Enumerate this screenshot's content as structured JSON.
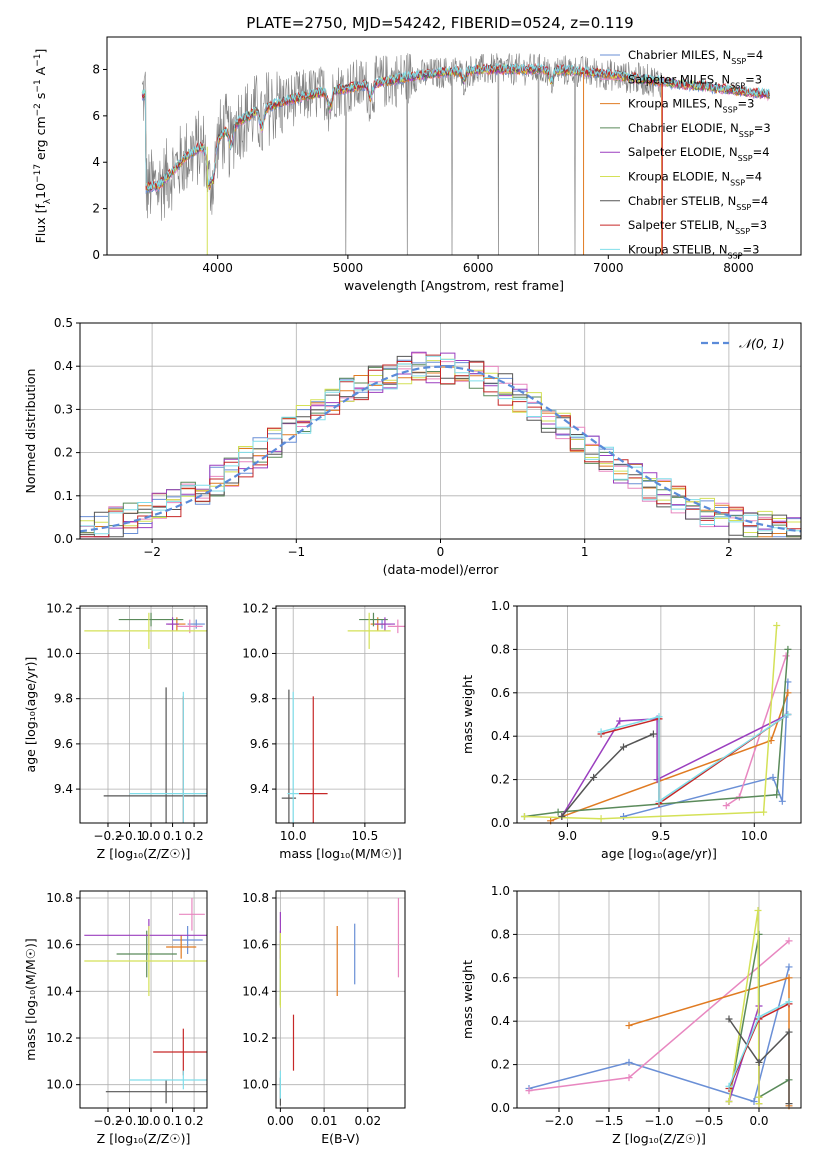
{
  "figure_title": "PLATE=2750, MJD=54242, FIBERID=0524, z=0.119",
  "colors": {
    "Chabrier MILES": "#6a8fd6",
    "Salpeter MILES": "#e887c0",
    "Kroupa MILES": "#e07b22",
    "Chabrier ELODIE": "#5a8a5a",
    "Salpeter ELODIE": "#9b3fbf",
    "Kroupa ELODIE": "#d4e157",
    "Chabrier STELIB": "#555555",
    "Salpeter STELIB": "#c62828",
    "Kroupa STELIB": "#80deea",
    "data": "#808080",
    "normal_curve": "#5b8bd9"
  },
  "chart_data": [
    {
      "id": "spectrum",
      "type": "line",
      "xlabel": "wavelength [Angstrom, rest frame]",
      "ylabel": "Flux [f_λ 10⁻¹⁷ erg cm⁻² s⁻¹ A⁻¹]",
      "xlim": [
        3150,
        8480
      ],
      "ylim": [
        0,
        9.4
      ],
      "xticks": [
        4000,
        5000,
        6000,
        7000,
        8000
      ],
      "yticks": [
        0,
        2,
        4,
        6,
        8
      ],
      "grid": false,
      "legend_position": "top-right",
      "legend": [
        {
          "label": "Chabrier MILES, N",
          "sub": "SSP",
          "suffix": "=4"
        },
        {
          "label": "Salpeter MILES, N",
          "sub": "SSP",
          "suffix": "=3"
        },
        {
          "label": "Kroupa MILES, N",
          "sub": "SSP",
          "suffix": "=3"
        },
        {
          "label": "Chabrier ELODIE, N",
          "sub": "SSP",
          "suffix": "=3"
        },
        {
          "label": "Salpeter ELODIE, N",
          "sub": "SSP",
          "suffix": "=4"
        },
        {
          "label": "Kroupa ELODIE, N",
          "sub": "SSP",
          "suffix": "=4"
        },
        {
          "label": "Chabrier STELIB, N",
          "sub": "SSP",
          "suffix": "=4"
        },
        {
          "label": "Salpeter STELIB, N",
          "sub": "SSP",
          "suffix": "=3"
        },
        {
          "label": "Kroupa STELIB, N",
          "sub": "SSP",
          "suffix": "=3"
        }
      ],
      "continuum": [
        [
          3450,
          2.9
        ],
        [
          3550,
          3.0
        ],
        [
          3650,
          3.6
        ],
        [
          3750,
          4.2
        ],
        [
          3850,
          4.6
        ],
        [
          3950,
          4.7
        ],
        [
          4050,
          5.3
        ],
        [
          4150,
          5.7
        ],
        [
          4300,
          6.2
        ],
        [
          4500,
          6.6
        ],
        [
          4700,
          6.9
        ],
        [
          4900,
          7.1
        ],
        [
          5100,
          7.3
        ],
        [
          5300,
          7.5
        ],
        [
          5500,
          7.7
        ],
        [
          5700,
          7.85
        ],
        [
          5900,
          7.95
        ],
        [
          6100,
          8.0
        ],
        [
          6300,
          8.0
        ],
        [
          6500,
          8.0
        ],
        [
          6700,
          7.95
        ],
        [
          6900,
          7.85
        ],
        [
          7100,
          7.7
        ],
        [
          7300,
          7.55
        ],
        [
          7500,
          7.4
        ],
        [
          7700,
          7.3
        ],
        [
          7900,
          7.15
        ],
        [
          8100,
          7.0
        ],
        [
          8240,
          6.9
        ]
      ],
      "model_range": [
        3420,
        8240
      ],
      "data_range": [
        3420,
        7420
      ]
    },
    {
      "id": "residuals",
      "type": "histogram",
      "xlabel": "(data-model)/error",
      "ylabel": "Normed distribution",
      "xlim": [
        -2.5,
        2.5
      ],
      "ylim": [
        0,
        0.5
      ],
      "xticks": [
        -2,
        -1,
        0,
        1,
        2
      ],
      "xtick_labels": [
        "−2",
        "−1",
        "0",
        "1",
        "2"
      ],
      "yticks": [
        0.0,
        0.1,
        0.2,
        0.3,
        0.4,
        0.5
      ],
      "ytick_labels": [
        "0.0",
        "0.1",
        "0.2",
        "0.3",
        "0.4",
        "0.5"
      ],
      "grid": true,
      "legend": "𝒩(0, 1)",
      "legend_position": "top-right",
      "bin_width": 0.1
    },
    {
      "id": "age_vs_Z",
      "type": "errorbar",
      "xlabel": "Z [log₁₀(Z/Z☉)]",
      "ylabel": "age  [log₁₀(age/yr)]",
      "xlim": [
        -0.33,
        0.26
      ],
      "ylim": [
        9.25,
        10.21
      ],
      "xticks": [
        -0.2,
        -0.1,
        0.0,
        0.1,
        0.2
      ],
      "xtick_labels": [
        "−0.2",
        "−0.1",
        "0.0",
        "0.1",
        "0.2"
      ],
      "yticks": [
        9.4,
        9.6,
        9.8,
        10.0,
        10.2
      ],
      "ytick_labels": [
        "9.4",
        "9.6",
        "9.8",
        "10.0",
        "10.2"
      ],
      "points": [
        {
          "model": "Chabrier MILES",
          "x": 0.21,
          "xerr": 0.04,
          "y": 10.13,
          "yerr": 0.02
        },
        {
          "model": "Salpeter MILES",
          "x": 0.18,
          "xerr": 0.06,
          "y": 10.12,
          "yerr": 0.03
        },
        {
          "model": "Kroupa MILES",
          "x": 0.12,
          "xerr": 0.04,
          "y": 10.13,
          "yerr": 0.03
        },
        {
          "model": "Chabrier ELODIE",
          "x": 0.0,
          "xerr": 0.15,
          "y": 10.15,
          "yerr": 0.03
        },
        {
          "model": "Salpeter ELODIE",
          "x": 0.1,
          "xerr": 0.03,
          "y": 10.13,
          "yerr": 0.03
        },
        {
          "model": "Kroupa ELODIE",
          "x": -0.01,
          "xerr": 0.3,
          "y": 10.1,
          "yerr": 0.08
        },
        {
          "model": "Chabrier STELIB",
          "x": 0.07,
          "xerr": 0.29,
          "y": 9.37,
          "yerr": 0.48
        },
        {
          "model": "Salpeter STELIB",
          "x": 0.15,
          "xerr": 0.0,
          "y": 9.38,
          "yerr": 0.43
        },
        {
          "model": "Kroupa STELIB",
          "x": 0.15,
          "xerr": 0.25,
          "y": 9.38,
          "yerr": 0.45
        }
      ]
    },
    {
      "id": "age_vs_mass",
      "type": "errorbar",
      "xlabel": "mass [log₁₀(M/M☉)]",
      "ylabel": "",
      "xlim": [
        9.88,
        10.78
      ],
      "ylim": [
        9.25,
        10.21
      ],
      "xticks": [
        10.0,
        10.5
      ],
      "xtick_labels": [
        "10.0",
        "10.5"
      ],
      "yticks": [
        9.4,
        9.6,
        9.8,
        10.0,
        10.2
      ],
      "ytick_labels": [
        "9.4",
        "9.6",
        "9.8",
        "10.0",
        "10.2"
      ],
      "points": [
        {
          "model": "Chabrier MILES",
          "x": 10.62,
          "xerr": 0.06,
          "y": 10.13,
          "yerr": 0.02
        },
        {
          "model": "Salpeter MILES",
          "x": 10.73,
          "xerr": 0.07,
          "y": 10.12,
          "yerr": 0.03
        },
        {
          "model": "Kroupa MILES",
          "x": 10.59,
          "xerr": 0.05,
          "y": 10.13,
          "yerr": 0.03
        },
        {
          "model": "Chabrier ELODIE",
          "x": 10.56,
          "xerr": 0.1,
          "y": 10.15,
          "yerr": 0.03
        },
        {
          "model": "Salpeter ELODIE",
          "x": 10.64,
          "xerr": 0.07,
          "y": 10.13,
          "yerr": 0.03
        },
        {
          "model": "Kroupa ELODIE",
          "x": 10.53,
          "xerr": 0.15,
          "y": 10.1,
          "yerr": 0.08
        },
        {
          "model": "Chabrier STELIB",
          "x": 9.97,
          "xerr": 0.05,
          "y": 9.36,
          "yerr": 0.48
        },
        {
          "model": "Salpeter STELIB",
          "x": 10.14,
          "xerr": 0.1,
          "y": 9.38,
          "yerr": 0.43
        },
        {
          "model": "Kroupa STELIB",
          "x": 10.0,
          "xerr": 0.04,
          "y": 9.38,
          "yerr": 0.45
        }
      ]
    },
    {
      "id": "massweight_vs_age",
      "type": "line",
      "xlabel": "age  [log₁₀(age/yr)]",
      "ylabel": "mass weight",
      "xlim": [
        8.73,
        10.25
      ],
      "ylim": [
        0,
        1
      ],
      "xticks": [
        9.0,
        9.5,
        10.0
      ],
      "xtick_labels": [
        "9.0",
        "9.5",
        "10.0"
      ],
      "yticks": [
        0.0,
        0.2,
        0.4,
        0.6,
        0.8,
        1.0
      ],
      "ytick_labels": [
        "0.0",
        "0.2",
        "0.4",
        "0.6",
        "0.8",
        "1.0"
      ],
      "grid": true,
      "series": [
        {
          "model": "Chabrier MILES",
          "points": [
            [
              9.3,
              0.03
            ],
            [
              10.1,
              0.21
            ],
            [
              10.15,
              0.1
            ],
            [
              10.18,
              0.65
            ]
          ]
        },
        {
          "model": "Salpeter MILES",
          "points": [
            [
              9.85,
              0.08
            ],
            [
              9.92,
              0.12
            ],
            [
              10.17,
              0.77
            ]
          ]
        },
        {
          "model": "Kroupa MILES",
          "points": [
            [
              8.91,
              0.01
            ],
            [
              10.09,
              0.38
            ],
            [
              10.18,
              0.6
            ]
          ]
        },
        {
          "model": "Chabrier ELODIE",
          "points": [
            [
              8.77,
              0.03
            ],
            [
              8.95,
              0.05
            ],
            [
              10.12,
              0.13
            ],
            [
              10.18,
              0.8
            ]
          ]
        },
        {
          "model": "Salpeter ELODIE",
          "points": [
            [
              8.97,
              0.03
            ],
            [
              9.28,
              0.47
            ],
            [
              9.48,
              0.48
            ],
            [
              9.48,
              0.2
            ],
            [
              10.18,
              0.5
            ]
          ]
        },
        {
          "model": "Kroupa ELODIE",
          "points": [
            [
              8.77,
              0.03
            ],
            [
              9.18,
              0.02
            ],
            [
              10.05,
              0.05
            ],
            [
              10.12,
              0.91
            ]
          ]
        },
        {
          "model": "Chabrier STELIB",
          "points": [
            [
              8.97,
              0.03
            ],
            [
              9.14,
              0.21
            ],
            [
              9.3,
              0.35
            ],
            [
              9.46,
              0.41
            ]
          ]
        },
        {
          "model": "Salpeter STELIB",
          "points": [
            [
              9.18,
              0.41
            ],
            [
              9.49,
              0.48
            ],
            [
              9.49,
              0.09
            ],
            [
              10.18,
              0.5
            ]
          ]
        },
        {
          "model": "Kroupa STELIB",
          "points": [
            [
              9.18,
              0.42
            ],
            [
              9.49,
              0.49
            ],
            [
              9.49,
              0.1
            ],
            [
              10.18,
              0.5
            ]
          ]
        }
      ]
    },
    {
      "id": "mass_vs_Z",
      "type": "errorbar",
      "xlabel": "Z [log₁₀(Z/Z☉)]",
      "ylabel": "mass [log₁₀(M/M☉)]",
      "xlim": [
        -0.33,
        0.26
      ],
      "ylim": [
        9.9,
        10.83
      ],
      "xticks": [
        -0.2,
        -0.1,
        0.0,
        0.1,
        0.2
      ],
      "xtick_labels": [
        "−0.2",
        "−0.1",
        "0.0",
        "0.1",
        "0.2"
      ],
      "yticks": [
        10.0,
        10.2,
        10.4,
        10.6,
        10.8
      ],
      "ytick_labels": [
        "10.0",
        "10.2",
        "10.4",
        "10.6",
        "10.8"
      ],
      "points": [
        {
          "model": "Chabrier MILES",
          "x": 0.17,
          "xerr": 0.07,
          "y": 10.62,
          "yerr": 0.06
        },
        {
          "model": "Salpeter MILES",
          "x": 0.19,
          "xerr": 0.06,
          "y": 10.73,
          "yerr": 0.07
        },
        {
          "model": "Kroupa MILES",
          "x": 0.14,
          "xerr": 0.07,
          "y": 10.59,
          "yerr": 0.05
        },
        {
          "model": "Chabrier ELODIE",
          "x": -0.02,
          "xerr": 0.14,
          "y": 10.56,
          "yerr": 0.1
        },
        {
          "model": "Salpeter ELODIE",
          "x": -0.01,
          "xerr": 0.3,
          "y": 10.64,
          "yerr": 0.07
        },
        {
          "model": "Kroupa ELODIE",
          "x": -0.01,
          "xerr": 0.3,
          "y": 10.53,
          "yerr": 0.15
        },
        {
          "model": "Chabrier STELIB",
          "x": 0.07,
          "xerr": 0.28,
          "y": 9.97,
          "yerr": 0.05
        },
        {
          "model": "Salpeter STELIB",
          "x": 0.15,
          "xerr": 0.14,
          "y": 10.14,
          "yerr": 0.1
        },
        {
          "model": "Kroupa STELIB",
          "x": 0.15,
          "xerr": 0.25,
          "y": 10.02,
          "yerr": 0.04
        }
      ]
    },
    {
      "id": "mass_vs_ebv",
      "type": "errorbar",
      "xlabel": "E(B-V)",
      "ylabel": "",
      "xlim": [
        -0.001,
        0.0285
      ],
      "ylim": [
        9.9,
        10.83
      ],
      "xticks": [
        0.0,
        0.01,
        0.02
      ],
      "xtick_labels": [
        "0.00",
        "0.01",
        "0.02"
      ],
      "yticks": [
        10.0,
        10.2,
        10.4,
        10.6,
        10.8
      ],
      "ytick_labels": [
        "10.0",
        "10.2",
        "10.4",
        "10.6",
        "10.8"
      ],
      "points": [
        {
          "model": "Chabrier MILES",
          "x": 0.017,
          "xerr": 0.0,
          "y": 10.56,
          "yerr": 0.13
        },
        {
          "model": "Salpeter MILES",
          "x": 0.027,
          "xerr": 0.0,
          "y": 10.63,
          "yerr": 0.17
        },
        {
          "model": "Kroupa MILES",
          "x": 0.013,
          "xerr": 0.0,
          "y": 10.53,
          "yerr": 0.15
        },
        {
          "model": "Chabrier ELODIE",
          "x": 0.0,
          "xerr": 0.0,
          "y": 10.5,
          "yerr": 0.16
        },
        {
          "model": "Salpeter ELODIE",
          "x": 0.0,
          "xerr": 0.0,
          "y": 10.64,
          "yerr": 0.1
        },
        {
          "model": "Kroupa ELODIE",
          "x": 0.0,
          "xerr": 0.0,
          "y": 10.49,
          "yerr": 0.16
        },
        {
          "model": "Chabrier STELIB",
          "x": 0.0,
          "xerr": 0.0,
          "y": 9.97,
          "yerr": 0.06
        },
        {
          "model": "Salpeter STELIB",
          "x": 0.003,
          "xerr": 0.0,
          "y": 10.18,
          "yerr": 0.12
        },
        {
          "model": "Kroupa STELIB",
          "x": 0.0,
          "xerr": 0.0,
          "y": 10.0,
          "yerr": 0.06
        }
      ]
    },
    {
      "id": "massweight_vs_Z",
      "type": "line",
      "xlabel": "Z [log₁₀(Z/Z☉)]",
      "ylabel": "mass weight",
      "xlim": [
        -2.42,
        0.42
      ],
      "ylim": [
        0,
        1
      ],
      "xticks": [
        -2.0,
        -1.5,
        -1.0,
        -0.5,
        0.0
      ],
      "xtick_labels": [
        "−2.0",
        "−1.5",
        "−1.0",
        "−0.5",
        "0.0"
      ],
      "yticks": [
        0.0,
        0.2,
        0.4,
        0.6,
        0.8,
        1.0
      ],
      "ytick_labels": [
        "0.0",
        "0.2",
        "0.4",
        "0.6",
        "0.8",
        "1.0"
      ],
      "grid": true,
      "series": [
        {
          "model": "Chabrier MILES",
          "points": [
            [
              -2.3,
              0.09
            ],
            [
              -1.3,
              0.21
            ],
            [
              -0.05,
              0.03
            ],
            [
              0.3,
              0.65
            ]
          ]
        },
        {
          "model": "Salpeter MILES",
          "points": [
            [
              -2.3,
              0.08
            ],
            [
              -1.3,
              0.14
            ],
            [
              0.3,
              0.77
            ]
          ]
        },
        {
          "model": "Kroupa MILES",
          "points": [
            [
              -1.3,
              0.38
            ],
            [
              0.3,
              0.6
            ],
            [
              0.3,
              0.01
            ]
          ]
        },
        {
          "model": "Chabrier ELODIE",
          "points": [
            [
              -0.3,
              0.03
            ],
            [
              0.0,
              0.8
            ],
            [
              0.0,
              0.05
            ],
            [
              0.3,
              0.13
            ]
          ]
        },
        {
          "model": "Salpeter ELODIE",
          "points": [
            [
              -0.3,
              0.03
            ],
            [
              0.0,
              0.47
            ],
            [
              0.0,
              0.02
            ]
          ]
        },
        {
          "model": "Kroupa ELODIE",
          "points": [
            [
              -0.3,
              0.03
            ],
            [
              -0.01,
              0.91
            ],
            [
              0.0,
              0.02
            ],
            [
              0.0,
              0.05
            ]
          ]
        },
        {
          "model": "Chabrier STELIB",
          "points": [
            [
              -0.3,
              0.41
            ],
            [
              0.0,
              0.21
            ],
            [
              0.3,
              0.35
            ],
            [
              0.3,
              0.02
            ]
          ]
        },
        {
          "model": "Salpeter STELIB",
          "points": [
            [
              -0.3,
              0.09
            ],
            [
              0.0,
              0.41
            ],
            [
              0.3,
              0.48
            ]
          ]
        },
        {
          "model": "Kroupa STELIB",
          "points": [
            [
              -0.3,
              0.1
            ],
            [
              0.0,
              0.42
            ],
            [
              0.3,
              0.49
            ]
          ]
        }
      ]
    }
  ]
}
